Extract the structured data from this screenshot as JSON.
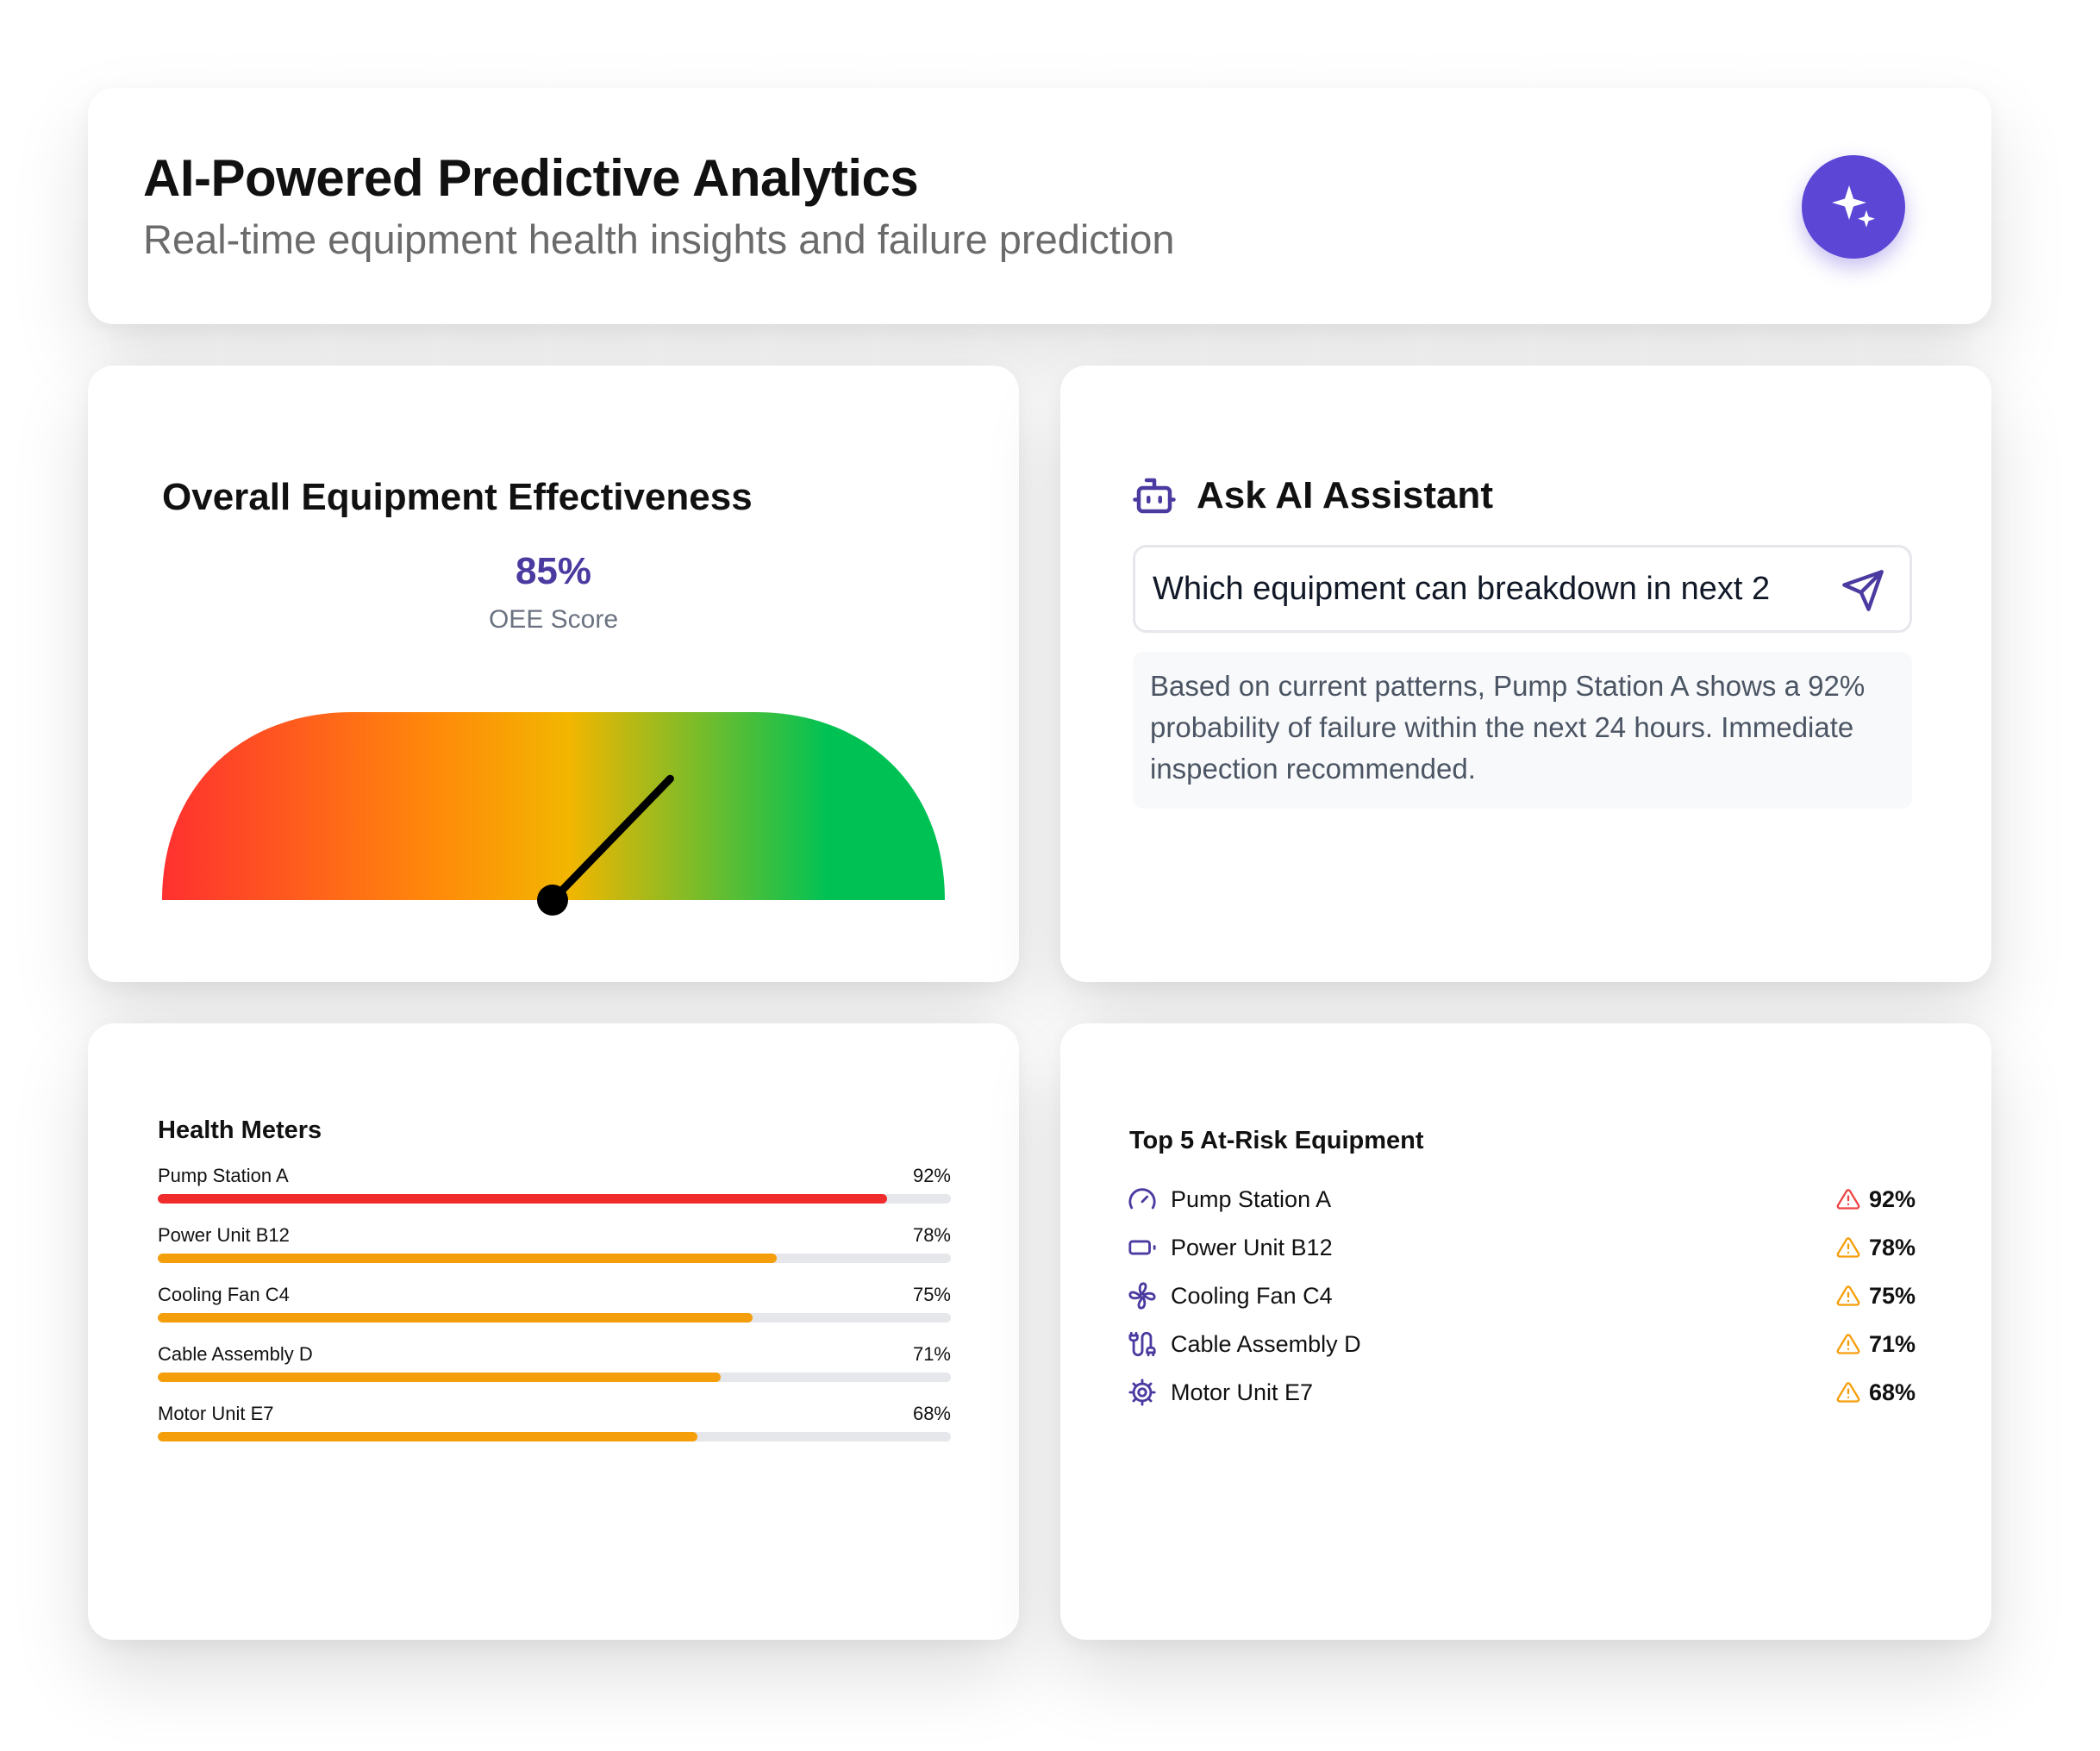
{
  "header": {
    "title": "AI-Powered Predictive Analytics",
    "subtitle": "Real-time equipment health insights and failure prediction",
    "ai_button_icon": "sparkles-icon",
    "accent_color": "#5b46d6"
  },
  "oee": {
    "title": "Overall Equipment Effectiveness",
    "score": "85%",
    "score_label": "OEE Score",
    "gauge_fraction": 0.85,
    "gauge_colors": [
      "#ff3030",
      "#ff8a0a",
      "#f2b600",
      "#00c254"
    ]
  },
  "assistant": {
    "title": "Ask AI Assistant",
    "title_icon": "robot-icon",
    "query_value": "Which equipment can breakdown in next 2",
    "send_icon": "send-icon",
    "answer": "Based on current patterns, Pump Station A shows a 92% probability of failure within the next 24 hours. Immediate inspection recommended."
  },
  "health": {
    "title": "Health Meters",
    "items": [
      {
        "name": "Pump Station A",
        "value": "92%",
        "fraction": 0.92,
        "color": "#ef2b2b"
      },
      {
        "name": "Power Unit B12",
        "value": "78%",
        "fraction": 0.78,
        "color": "#f59e0b"
      },
      {
        "name": "Cooling Fan C4",
        "value": "75%",
        "fraction": 0.75,
        "color": "#f59e0b"
      },
      {
        "name": "Cable Assembly D",
        "value": "71%",
        "fraction": 0.71,
        "color": "#f59e0b"
      },
      {
        "name": "Motor Unit E7",
        "value": "68%",
        "fraction": 0.68,
        "color": "#f59e0b"
      }
    ]
  },
  "atrisk": {
    "title": "Top 5 At-Risk Equipment",
    "items": [
      {
        "name": "Pump Station A",
        "value": "92%",
        "icon": "gauge-icon",
        "warn_color": "#ef4444"
      },
      {
        "name": "Power Unit B12",
        "value": "78%",
        "icon": "battery-icon",
        "warn_color": "#f59e0b"
      },
      {
        "name": "Cooling Fan C4",
        "value": "75%",
        "icon": "fan-icon",
        "warn_color": "#f59e0b"
      },
      {
        "name": "Cable Assembly D",
        "value": "71%",
        "icon": "cable-icon",
        "warn_color": "#f59e0b"
      },
      {
        "name": "Motor Unit E7",
        "value": "68%",
        "icon": "cog-icon",
        "warn_color": "#f59e0b"
      }
    ]
  }
}
